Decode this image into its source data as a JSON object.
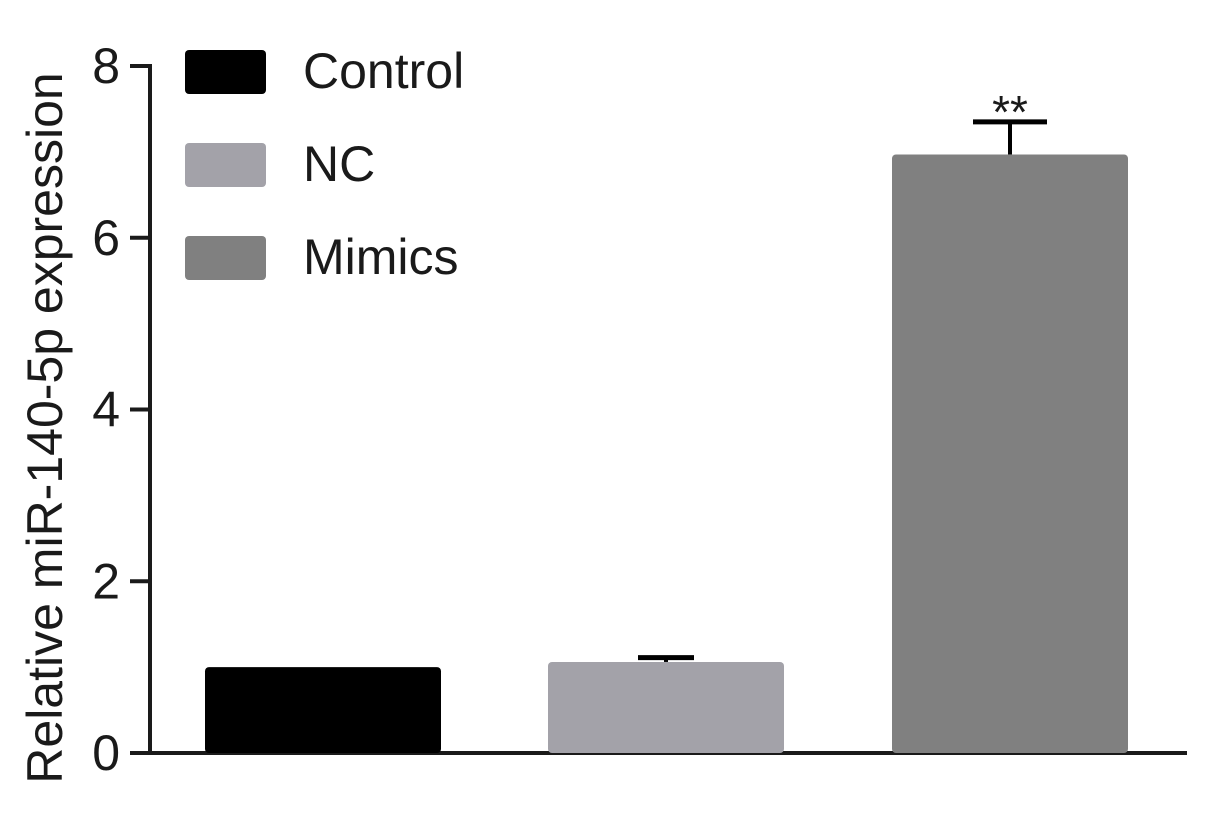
{
  "chart_data": {
    "type": "bar",
    "ylabel": "Relative miR-140-5p expression",
    "xlabel": "",
    "ylim": [
      0,
      8
    ],
    "yticks": [
      0,
      2,
      4,
      6,
      8
    ],
    "ytick_labels": [
      "0",
      "2",
      "4",
      "6",
      "8"
    ],
    "categories": [
      "Control",
      "NC",
      "Mimics"
    ],
    "values": [
      1.0,
      1.06,
      6.97
    ],
    "errors": [
      0.0,
      0.05,
      0.38
    ],
    "colors": [
      "#000000",
      "#a3a2a9",
      "#808080"
    ],
    "legend": {
      "placement": "top-left",
      "entries": [
        "Control",
        "NC",
        "Mimics"
      ]
    },
    "annotations": [
      {
        "category": "Mimics",
        "text": "**"
      }
    ],
    "grid": false
  }
}
